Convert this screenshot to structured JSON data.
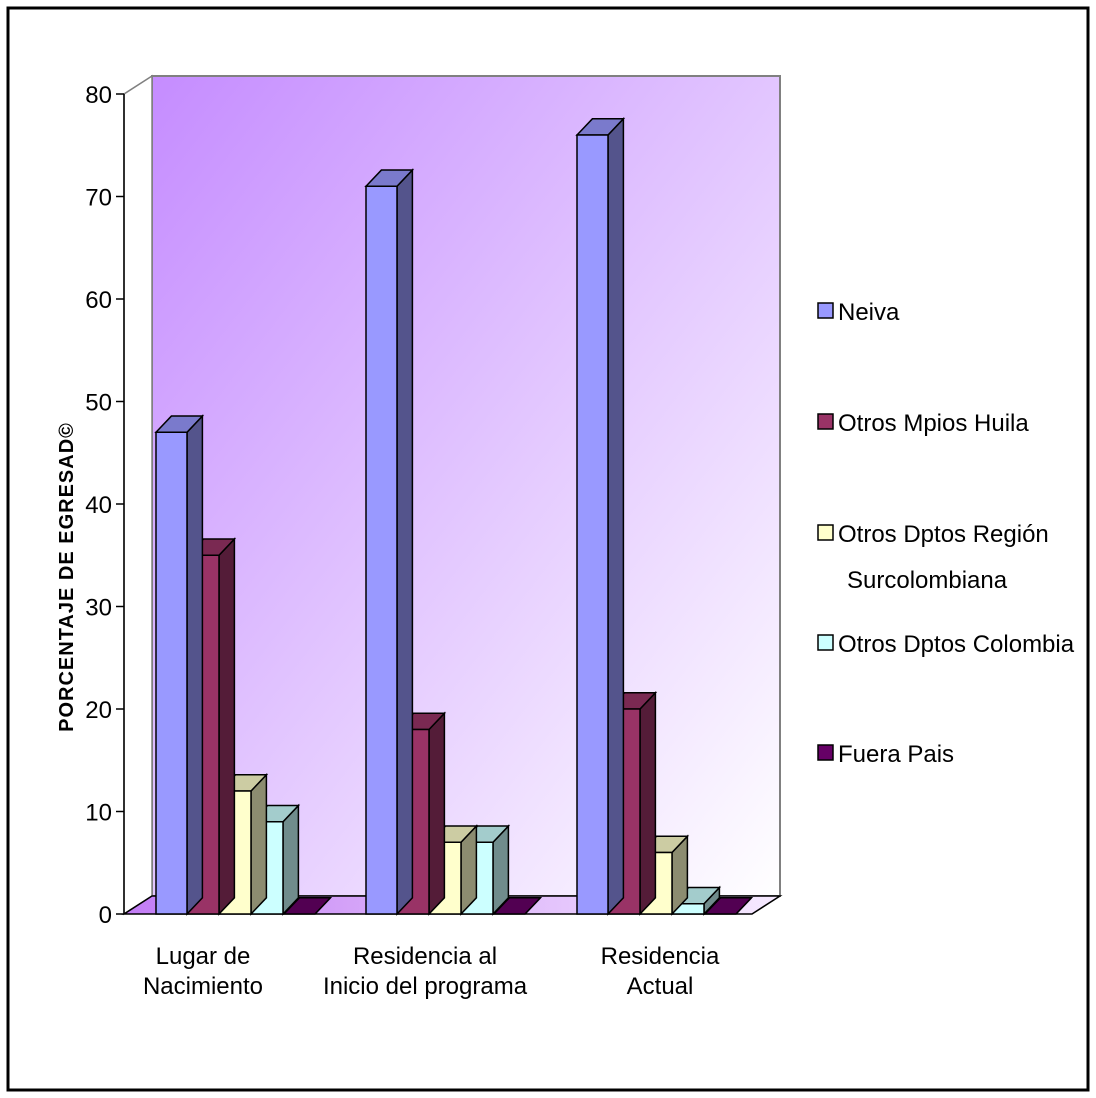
{
  "chart_data": {
    "type": "bar",
    "categories": [
      [
        "Lugar de",
        "Nacimiento"
      ],
      [
        "Residencia al",
        "Inicio del programa"
      ],
      [
        "Residencia",
        "Actual"
      ]
    ],
    "series": [
      {
        "name": "Neiva",
        "values": [
          47,
          71,
          76
        ],
        "color": "#9999ff"
      },
      {
        "name": "Otros Mpios Huila",
        "values": [
          35,
          18,
          20
        ],
        "color": "#993366"
      },
      {
        "name": [
          "Otros Dptos Región",
          "Surcolombiana"
        ],
        "values": [
          12,
          7,
          6
        ],
        "color": "#ffffcc"
      },
      {
        "name": "Otros Dptos Colombia",
        "values": [
          9,
          7,
          1
        ],
        "color": "#ccffff"
      },
      {
        "name": "Fuera Pais",
        "values": [
          0,
          0,
          0
        ],
        "color": "#660066"
      }
    ],
    "ylabel": "PORCENTAJE DE EGRESAD©",
    "ylim": [
      0,
      80
    ],
    "yticks": [
      0,
      10,
      20,
      30,
      40,
      50,
      60,
      70,
      80
    ],
    "legend": "right",
    "wall_gradient": [
      "#c58cff",
      "#ffffff"
    ]
  }
}
